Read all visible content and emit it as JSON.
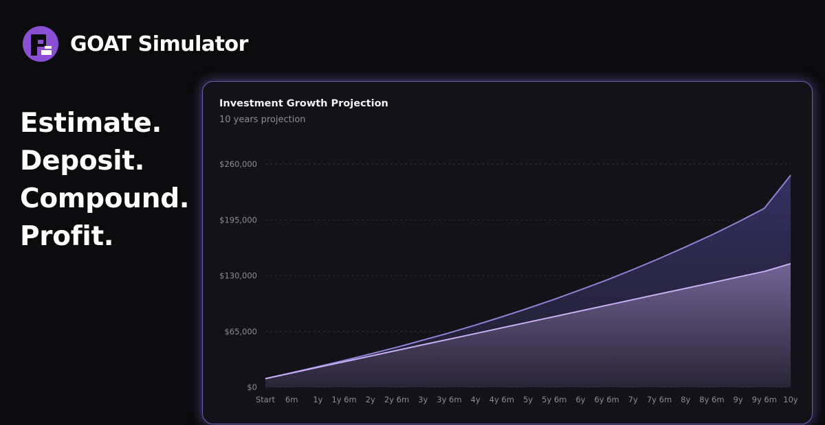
{
  "brand": {
    "name": "GOAT Simulator",
    "logo_icon": "goat-logo-icon",
    "accent": "#8b4fd6"
  },
  "taglines": [
    "Estimate.",
    "Deposit.",
    "Compound.",
    "Profit."
  ],
  "card": {
    "title": "Investment Growth Projection",
    "subtitle": "10 years projection"
  },
  "chart_data": {
    "type": "area",
    "categories": [
      "Start",
      "6m",
      "1y",
      "1y 6m",
      "2y",
      "2y 6m",
      "3y",
      "3y 6m",
      "4y",
      "4y 6m",
      "5y",
      "5y 6m",
      "6y",
      "6y 6m",
      "7y",
      "7y 6m",
      "8y",
      "8y 6m",
      "9y",
      "9y 6m",
      "10y"
    ],
    "ylim": [
      0,
      260000
    ],
    "yticks": [
      0,
      65000,
      130000,
      195000,
      260000
    ],
    "ytick_labels": [
      "$0",
      "$65,000",
      "$130,000",
      "$195,000",
      "$260,000"
    ],
    "grid": true,
    "series": [
      {
        "values": [
          10000,
          16900,
          24000,
          31200,
          38800,
          46600,
          54900,
          63400,
          72500,
          82000,
          92000,
          102500,
          113500,
          125000,
          137200,
          150000,
          163500,
          177500,
          192500,
          208500,
          247000
        ],
        "color": "#8d82d4"
      },
      {
        "values": [
          10000,
          16600,
          23200,
          29700,
          36300,
          42900,
          49500,
          56000,
          62600,
          69200,
          75800,
          82300,
          88900,
          95500,
          102100,
          108700,
          115200,
          121800,
          128400,
          135000,
          144000
        ],
        "color": "#c7aef2"
      }
    ]
  }
}
